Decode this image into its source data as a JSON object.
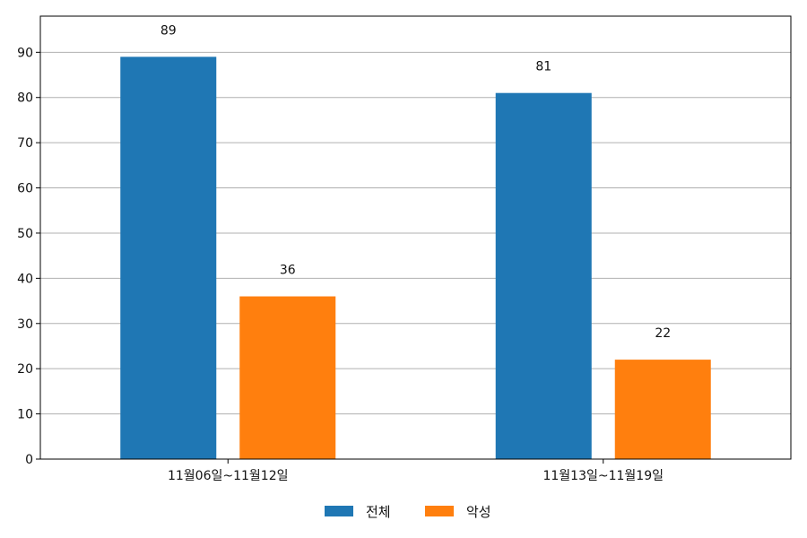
{
  "chart_data": {
    "type": "bar",
    "categories": [
      "11월06일~11월12일",
      "11월13일~11월19일"
    ],
    "series": [
      {
        "name": "전체",
        "values": [
          89,
          81
        ],
        "color": "#1f77b4"
      },
      {
        "name": "악성",
        "values": [
          36,
          22
        ],
        "color": "#ff7f0e"
      }
    ],
    "ylim": [
      0,
      98
    ],
    "yticks": [
      0,
      10,
      20,
      30,
      40,
      50,
      60,
      70,
      80,
      90
    ],
    "grid": "y",
    "legend_position": "bottom-center",
    "data_labels": true
  }
}
